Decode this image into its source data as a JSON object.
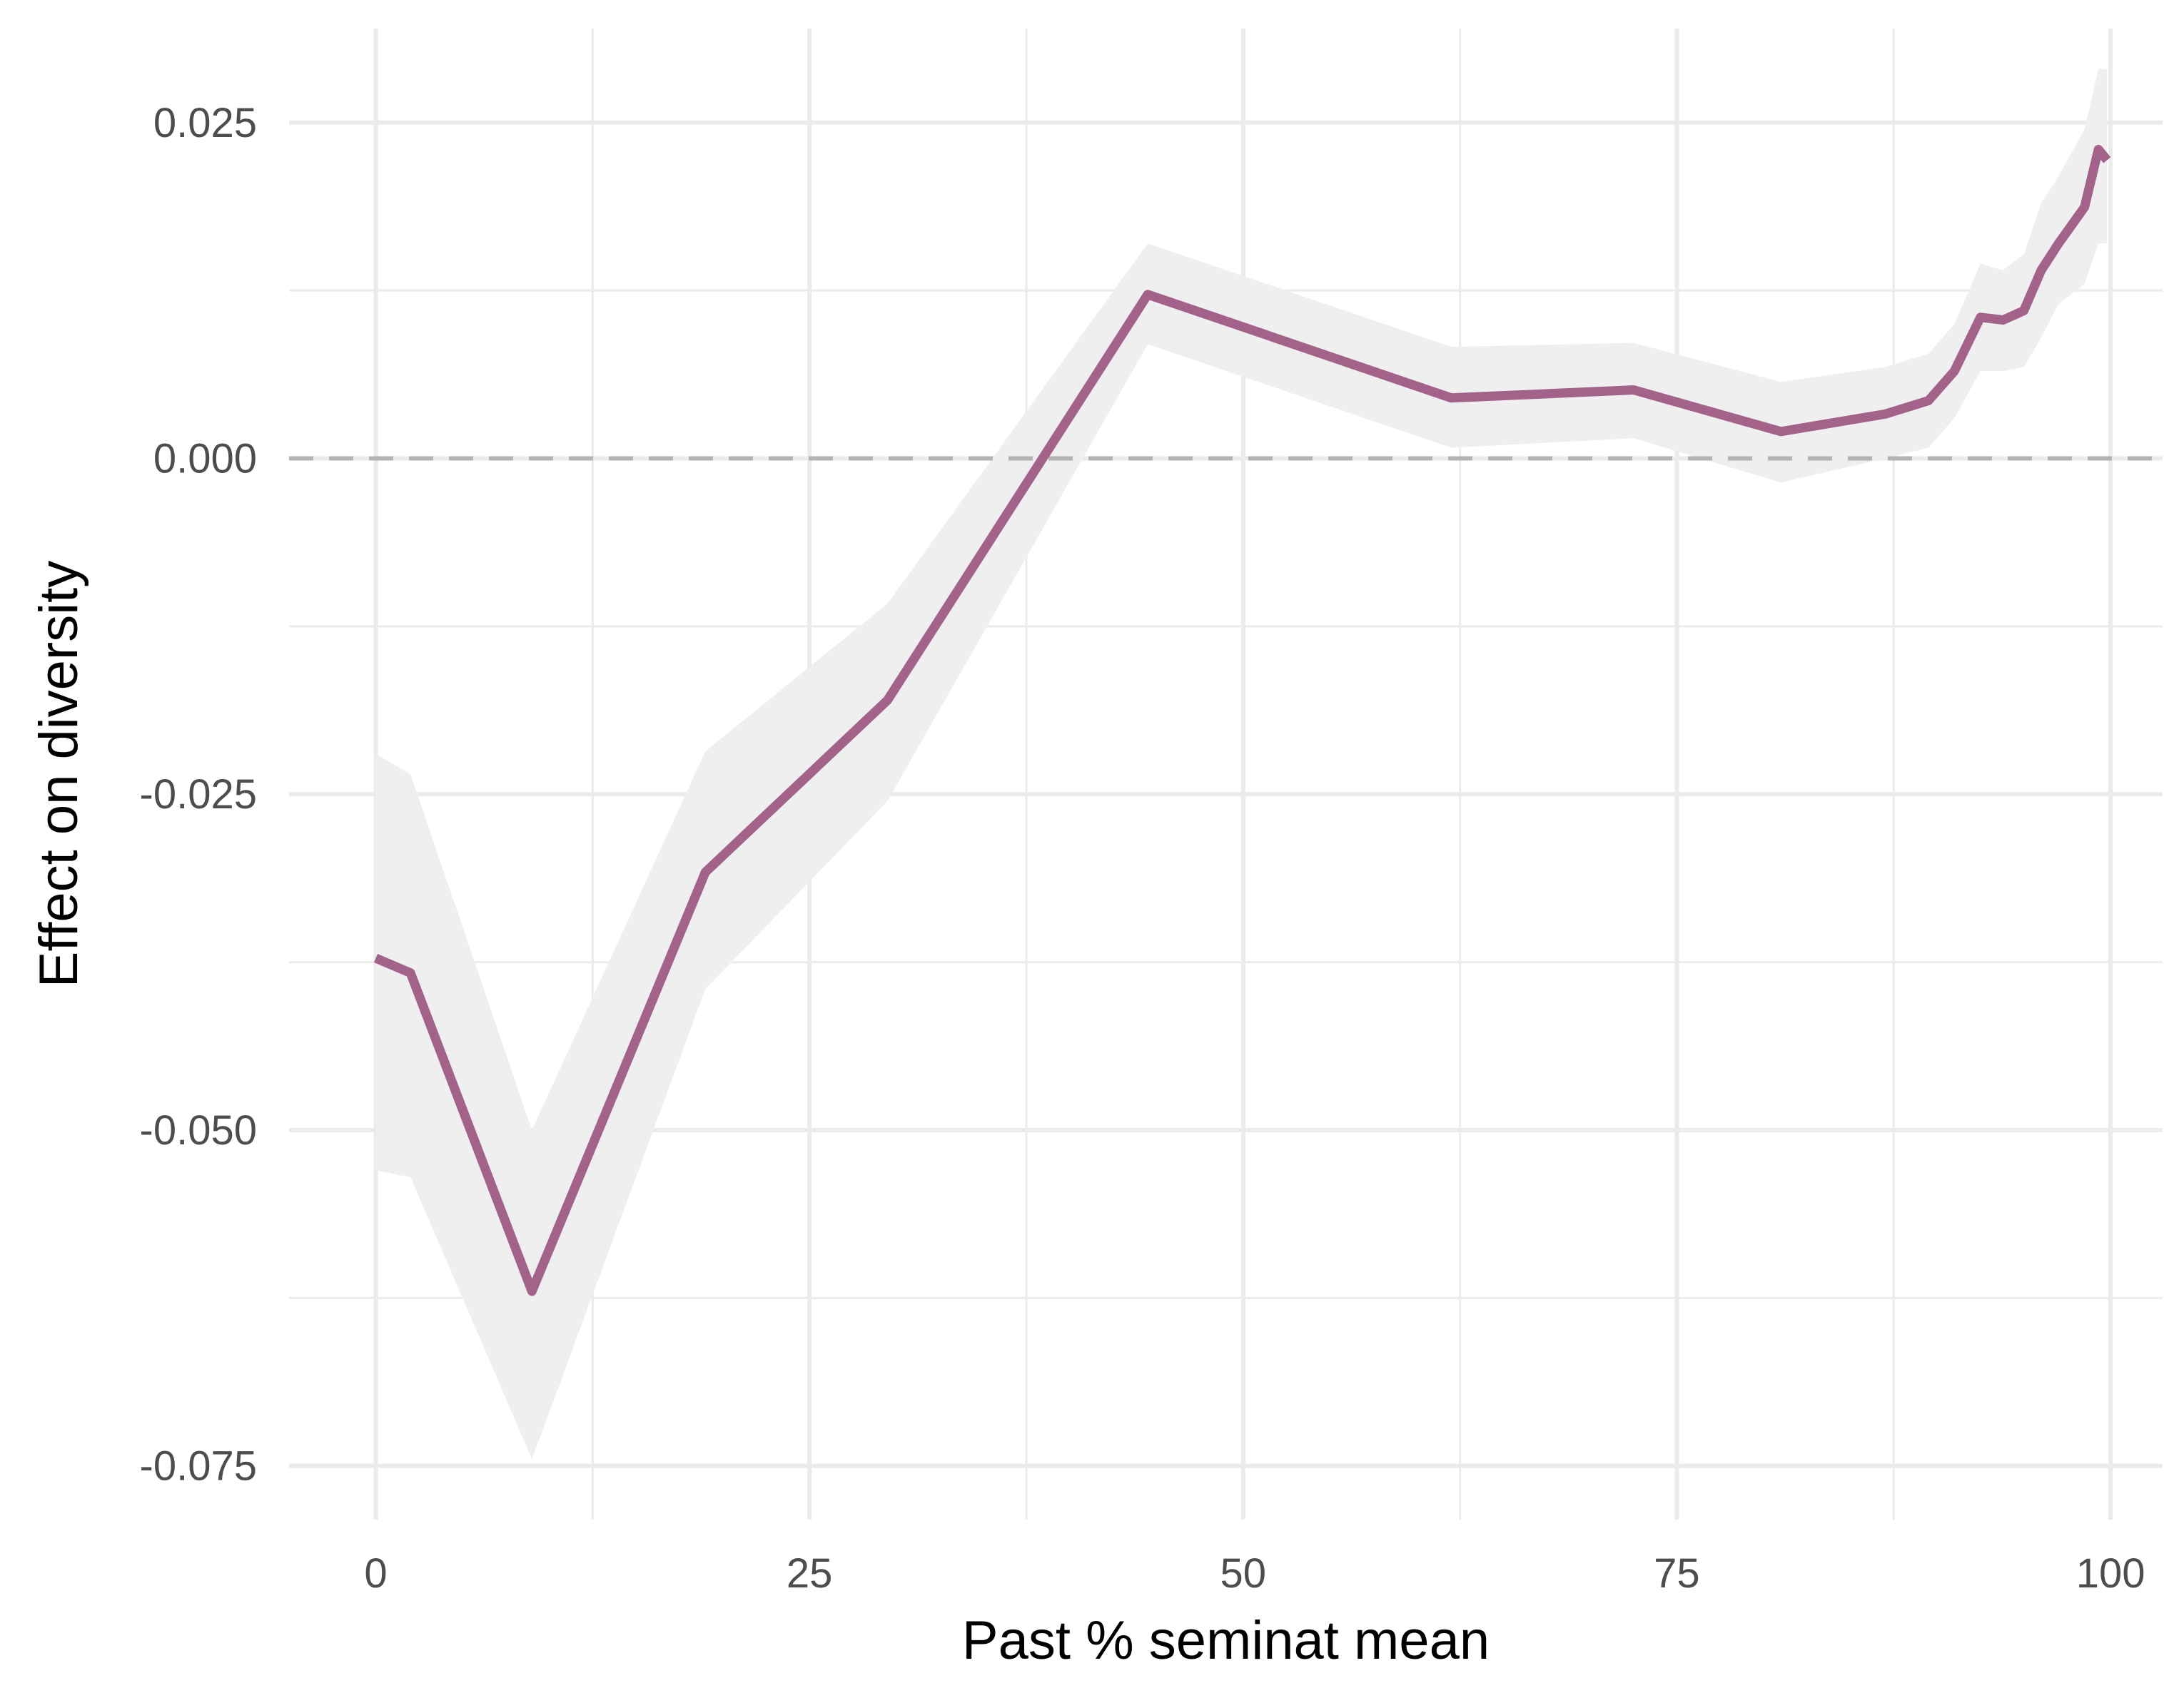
{
  "chart_data": {
    "type": "line",
    "title": "",
    "xlabel": "Past % seminat mean",
    "ylabel": "Effect on diversity",
    "xlim": [
      -5,
      103
    ],
    "ylim": [
      -0.079,
      0.032
    ],
    "x_ticks": [
      0,
      25,
      50,
      75,
      100
    ],
    "x_tick_labels": [
      "0",
      "25",
      "50",
      "75",
      "100"
    ],
    "y_ticks": [
      -0.075,
      -0.05,
      -0.025,
      0.0,
      0.025
    ],
    "y_tick_labels": [
      "-0.075",
      "-0.050",
      "-0.025",
      "0.000",
      "0.025"
    ],
    "grid": true,
    "reference_line": {
      "y": 0,
      "style": "dashed",
      "color": "#b3b3b3"
    },
    "series": [
      {
        "color": "#a3628a",
        "band_color": "#efefef",
        "x": [
          0,
          2,
          9,
          19,
          29.5,
          44.5,
          62,
          72.5,
          81,
          87,
          89.5,
          91,
          92.5,
          93.8,
          95,
          96,
          97,
          98.5,
          99.3,
          99.8
        ],
        "y": [
          -0.0372,
          -0.0383,
          -0.062,
          -0.0308,
          -0.018,
          0.0122,
          0.0045,
          0.0051,
          0.002,
          0.0033,
          0.0043,
          0.0065,
          0.0105,
          0.0103,
          0.011,
          0.014,
          0.016,
          0.0187,
          0.023,
          0.0222
        ],
        "lower": [
          -0.053,
          -0.0535,
          -0.0745,
          -0.0395,
          -0.0255,
          0.0085,
          0.0008,
          0.0015,
          -0.0018,
          0.0,
          0.0008,
          0.003,
          0.0065,
          0.0065,
          0.0068,
          0.009,
          0.0115,
          0.013,
          0.016,
          0.016
        ],
        "upper": [
          -0.022,
          -0.0235,
          -0.05,
          -0.0218,
          -0.0108,
          0.016,
          0.0083,
          0.0086,
          0.0057,
          0.0068,
          0.0078,
          0.01,
          0.0145,
          0.014,
          0.0152,
          0.019,
          0.021,
          0.0245,
          0.029,
          0.029
        ]
      }
    ]
  }
}
